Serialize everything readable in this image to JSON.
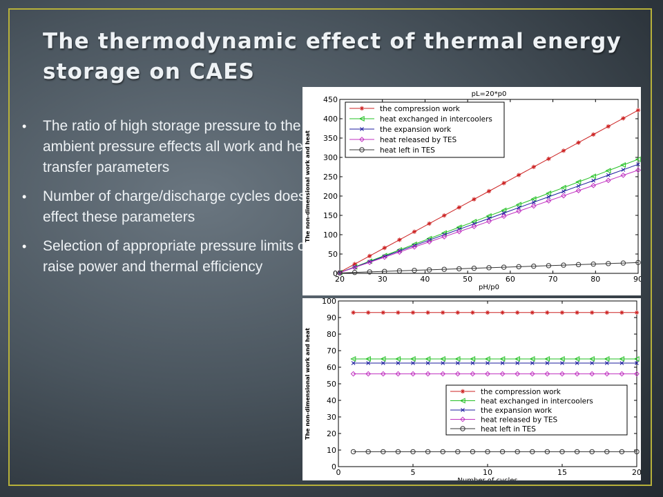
{
  "slide": {
    "title": "The thermodynamic effect of thermal energy storage on CAES",
    "bullets": [
      "The ratio of high storage pressure to the ambient pressure effects all work and heat transfer parameters",
      "Number of charge/discharge cycles does not effect these parameters",
      "Selection of appropriate pressure limits can raise power and thermal efficiency"
    ],
    "colors": {
      "frame": "#b8b23a",
      "text": "#eef2f5"
    }
  },
  "chart_data": [
    {
      "type": "line",
      "title": "pL=20*p0",
      "xlabel": "pH/p0",
      "ylabel": "The non-dimensional work and heat",
      "xlim": [
        20,
        90
      ],
      "ylim": [
        0,
        450
      ],
      "xticks": [
        20,
        30,
        40,
        50,
        60,
        70,
        80,
        90
      ],
      "yticks": [
        0,
        50,
        100,
        150,
        200,
        250,
        300,
        350,
        400,
        450
      ],
      "grid": false,
      "legend_position": "top-left",
      "series": [
        {
          "name": "the compression work",
          "color": "#cc2020",
          "marker": "star",
          "x": [
            20,
            90
          ],
          "y": [
            3,
            422
          ]
        },
        {
          "name": "heat exchanged in intercoolers",
          "color": "#22c022",
          "marker": "triangle-left",
          "x": [
            20,
            90
          ],
          "y": [
            2,
            295
          ]
        },
        {
          "name": "the expansion work",
          "color": "#1a1a9e",
          "marker": "x",
          "x": [
            20,
            90
          ],
          "y": [
            2,
            282
          ]
        },
        {
          "name": "heat released by TES",
          "color": "#c030c0",
          "marker": "diamond",
          "x": [
            20,
            90
          ],
          "y": [
            2,
            267
          ]
        },
        {
          "name": "heat left in TES",
          "color": "#333333",
          "marker": "circle",
          "x": [
            20,
            90
          ],
          "y": [
            1,
            28
          ]
        }
      ]
    },
    {
      "type": "line",
      "xlabel": "Number of cycles",
      "ylabel": "The non-dimensional work and heat",
      "xlim": [
        0,
        20
      ],
      "ylim": [
        0,
        100
      ],
      "xticks": [
        0,
        5,
        10,
        15,
        20
      ],
      "yticks": [
        0,
        10,
        20,
        30,
        40,
        50,
        60,
        70,
        80,
        90,
        100
      ],
      "grid": false,
      "legend_position": "right",
      "series": [
        {
          "name": "the compression work",
          "color": "#cc2020",
          "marker": "star",
          "x": [
            1,
            20
          ],
          "y": [
            93,
            93
          ]
        },
        {
          "name": "heat exchanged in intercoolers",
          "color": "#22c022",
          "marker": "triangle-left",
          "x": [
            1,
            20
          ],
          "y": [
            65,
            65
          ]
        },
        {
          "name": "the expansion work",
          "color": "#1a1a9e",
          "marker": "x",
          "x": [
            1,
            20
          ],
          "y": [
            62.5,
            62.5
          ]
        },
        {
          "name": "heat released by TES",
          "color": "#c030c0",
          "marker": "diamond",
          "x": [
            1,
            20
          ],
          "y": [
            56,
            56
          ]
        },
        {
          "name": "heat left in TES",
          "color": "#333333",
          "marker": "circle",
          "x": [
            1,
            20
          ],
          "y": [
            9,
            9
          ]
        }
      ]
    }
  ]
}
